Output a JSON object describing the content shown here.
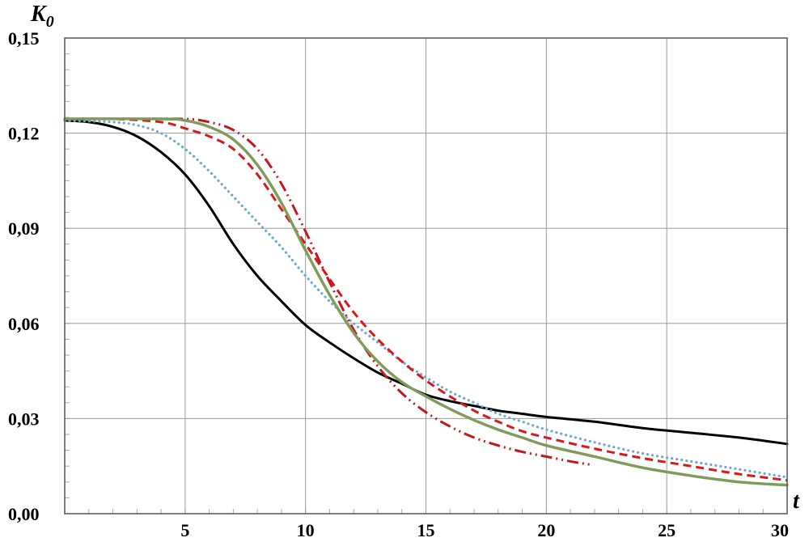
{
  "chart_data": {
    "type": "line",
    "xlabel": "t",
    "ylabel_main": "K",
    "ylabel_sub": "0",
    "xlim": [
      0,
      30
    ],
    "ylim": [
      0,
      0.15
    ],
    "grid": true,
    "xticks": [
      {
        "value": 5,
        "label": "5"
      },
      {
        "value": 10,
        "label": "10"
      },
      {
        "value": 15,
        "label": "15"
      },
      {
        "value": 20,
        "label": "20"
      },
      {
        "value": 25,
        "label": "25"
      },
      {
        "value": 30,
        "label": "30"
      }
    ],
    "yticks": [
      {
        "value": 0,
        "label": "0,00"
      },
      {
        "value": 0.03,
        "label": "0,03"
      },
      {
        "value": 0.06,
        "label": "0,06"
      },
      {
        "value": 0.09,
        "label": "0,09"
      },
      {
        "value": 0.12,
        "label": "0,12"
      },
      {
        "value": 0.15,
        "label": "0,15"
      }
    ],
    "series": [
      {
        "style": "solid",
        "color": "#000000",
        "points": [
          [
            0,
            0.124
          ],
          [
            1,
            0.1235
          ],
          [
            2,
            0.122
          ],
          [
            3,
            0.119
          ],
          [
            4,
            0.114
          ],
          [
            5,
            0.107
          ],
          [
            6,
            0.097
          ],
          [
            7,
            0.085
          ],
          [
            8,
            0.075
          ],
          [
            9,
            0.067
          ],
          [
            10,
            0.0595
          ],
          [
            11,
            0.054
          ],
          [
            12,
            0.049
          ],
          [
            13,
            0.0445
          ],
          [
            14,
            0.041
          ],
          [
            15,
            0.0375
          ],
          [
            16,
            0.0355
          ],
          [
            17,
            0.034
          ],
          [
            18,
            0.0325
          ],
          [
            19,
            0.0315
          ],
          [
            20,
            0.0305
          ],
          [
            22,
            0.029
          ],
          [
            24,
            0.027
          ],
          [
            26,
            0.0255
          ],
          [
            28,
            0.024
          ],
          [
            30,
            0.022
          ]
        ]
      },
      {
        "style": "dotted",
        "color": "#6fa8d0",
        "points": [
          [
            0,
            0.124
          ],
          [
            2,
            0.1235
          ],
          [
            3,
            0.1225
          ],
          [
            4,
            0.12
          ],
          [
            5,
            0.115
          ],
          [
            6,
            0.108
          ],
          [
            7,
            0.1
          ],
          [
            8,
            0.092
          ],
          [
            9,
            0.084
          ],
          [
            10,
            0.075
          ],
          [
            11,
            0.067
          ],
          [
            12,
            0.06
          ],
          [
            13,
            0.054
          ],
          [
            14,
            0.048
          ],
          [
            15,
            0.043
          ],
          [
            16,
            0.0385
          ],
          [
            17,
            0.035
          ],
          [
            18,
            0.0315
          ],
          [
            19,
            0.029
          ],
          [
            20,
            0.0265
          ],
          [
            22,
            0.0225
          ],
          [
            24,
            0.019
          ],
          [
            26,
            0.0165
          ],
          [
            28,
            0.014
          ],
          [
            30,
            0.0115
          ]
        ]
      },
      {
        "style": "dashed",
        "color": "#d7191c",
        "points": [
          [
            0,
            0.1245
          ],
          [
            2,
            0.1245
          ],
          [
            4,
            0.1235
          ],
          [
            5,
            0.1215
          ],
          [
            6,
            0.119
          ],
          [
            7,
            0.115
          ],
          [
            8,
            0.107
          ],
          [
            9,
            0.096
          ],
          [
            10,
            0.085
          ],
          [
            11,
            0.074
          ],
          [
            12,
            0.0635
          ],
          [
            13,
            0.055
          ],
          [
            14,
            0.048
          ],
          [
            15,
            0.042
          ],
          [
            16,
            0.037
          ],
          [
            17,
            0.0325
          ],
          [
            18,
            0.029
          ],
          [
            19,
            0.026
          ],
          [
            20,
            0.024
          ],
          [
            22,
            0.0205
          ],
          [
            24,
            0.0175
          ],
          [
            26,
            0.015
          ],
          [
            28,
            0.0125
          ],
          [
            30,
            0.0105
          ]
        ]
      },
      {
        "style": "dash-dot",
        "color": "#c0181c",
        "points": [
          [
            0,
            0.1245
          ],
          [
            3,
            0.1245
          ],
          [
            5,
            0.1245
          ],
          [
            6,
            0.1235
          ],
          [
            7,
            0.121
          ],
          [
            8,
            0.115
          ],
          [
            9,
            0.104
          ],
          [
            10,
            0.089
          ],
          [
            11,
            0.073
          ],
          [
            12,
            0.058
          ],
          [
            13,
            0.0465
          ],
          [
            14,
            0.038
          ],
          [
            15,
            0.032
          ],
          [
            16,
            0.0275
          ],
          [
            17,
            0.024
          ],
          [
            18,
            0.0215
          ],
          [
            19,
            0.0195
          ],
          [
            20,
            0.018
          ],
          [
            21,
            0.0165
          ],
          [
            21.8,
            0.0155
          ]
        ]
      },
      {
        "style": "solid",
        "color": "#7f9a5a",
        "points": [
          [
            0,
            0.1245
          ],
          [
            4,
            0.1245
          ],
          [
            5,
            0.124
          ],
          [
            6,
            0.122
          ],
          [
            7,
            0.118
          ],
          [
            8,
            0.11
          ],
          [
            9,
            0.098
          ],
          [
            10,
            0.083
          ],
          [
            11,
            0.069
          ],
          [
            12,
            0.057
          ],
          [
            13,
            0.048
          ],
          [
            14,
            0.0415
          ],
          [
            15,
            0.037
          ],
          [
            16,
            0.033
          ],
          [
            17,
            0.0295
          ],
          [
            18,
            0.0265
          ],
          [
            19,
            0.024
          ],
          [
            20,
            0.0215
          ],
          [
            22,
            0.018
          ],
          [
            24,
            0.0145
          ],
          [
            26,
            0.012
          ],
          [
            28,
            0.01
          ],
          [
            30,
            0.009
          ]
        ]
      }
    ]
  }
}
